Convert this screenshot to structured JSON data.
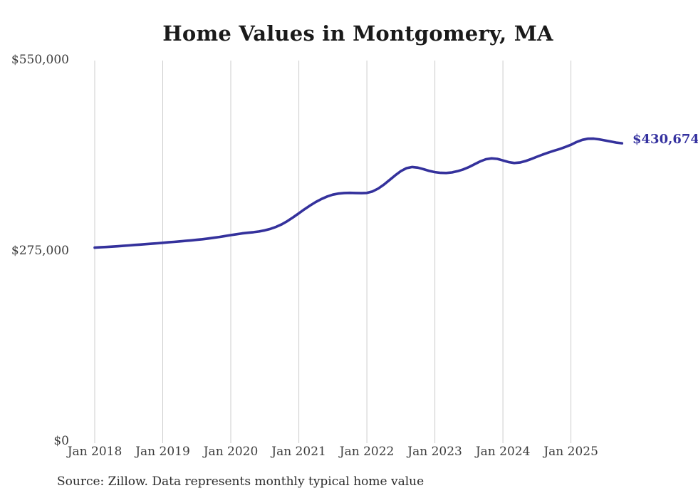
{
  "title": "Home Values in Montgomery, MA",
  "source_note": "Source: Zillow. Data represents monthly typical home value",
  "colors": {
    "line": "#34319c",
    "grid": "#cccccc",
    "title_text": "#1a1a1a",
    "axis_text": "#3d3d3d",
    "end_label_text": "#34319f",
    "background": "#ffffff"
  },
  "y_axis": {
    "tick_labels": [
      "$550,000",
      "$275,000",
      "$0"
    ],
    "tick_values": [
      550000,
      275000,
      0
    ]
  },
  "chart_data": {
    "type": "line",
    "title": "Home Values in Montgomery, MA",
    "xlabel": "",
    "ylabel": "",
    "ylim": [
      0,
      550000
    ],
    "y_tick_values": [
      0,
      275000,
      550000
    ],
    "grid": "vertical-only",
    "legend": "none",
    "series_name": "Typical home value",
    "end_label": "$430,674",
    "latest_value": 430674,
    "x_tick_labels": [
      "Jan 2018",
      "Jan 2019",
      "Jan 2020",
      "Jan 2021",
      "Jan 2022",
      "Jan 2023",
      "Jan 2024",
      "Jan 2025"
    ],
    "x_tick_month_indices": [
      0,
      12,
      24,
      36,
      48,
      60,
      72,
      84
    ],
    "x_months": [
      "2018-01",
      "2018-02",
      "2018-03",
      "2018-04",
      "2018-05",
      "2018-06",
      "2018-07",
      "2018-08",
      "2018-09",
      "2018-10",
      "2018-11",
      "2018-12",
      "2019-01",
      "2019-02",
      "2019-03",
      "2019-04",
      "2019-05",
      "2019-06",
      "2019-07",
      "2019-08",
      "2019-09",
      "2019-10",
      "2019-11",
      "2019-12",
      "2020-01",
      "2020-02",
      "2020-03",
      "2020-04",
      "2020-05",
      "2020-06",
      "2020-07",
      "2020-08",
      "2020-09",
      "2020-10",
      "2020-11",
      "2020-12",
      "2021-01",
      "2021-02",
      "2021-03",
      "2021-04",
      "2021-05",
      "2021-06",
      "2021-07",
      "2021-08",
      "2021-09",
      "2021-10",
      "2021-11",
      "2021-12",
      "2022-01",
      "2022-02",
      "2022-03",
      "2022-04",
      "2022-05",
      "2022-06",
      "2022-07",
      "2022-08",
      "2022-09",
      "2022-10",
      "2022-11",
      "2022-12",
      "2023-01",
      "2023-02",
      "2023-03",
      "2023-04",
      "2023-05",
      "2023-06",
      "2023-07",
      "2023-08",
      "2023-09",
      "2023-10",
      "2023-11",
      "2023-12",
      "2024-01",
      "2024-02",
      "2024-03",
      "2024-04",
      "2024-05",
      "2024-06",
      "2024-07",
      "2024-08",
      "2024-09",
      "2024-10",
      "2024-11",
      "2024-12",
      "2025-01",
      "2025-02",
      "2025-03",
      "2025-04",
      "2025-05",
      "2025-06",
      "2025-07",
      "2025-08",
      "2025-09",
      "2025-10"
    ],
    "values": [
      280000,
      280500,
      281000,
      281500,
      282000,
      282600,
      283200,
      283900,
      284500,
      285100,
      285700,
      286300,
      287000,
      287700,
      288400,
      289100,
      289800,
      290500,
      291300,
      292200,
      293200,
      294300,
      295500,
      296800,
      298100,
      299400,
      300600,
      301500,
      302300,
      303400,
      305000,
      307200,
      310100,
      313800,
      318400,
      323800,
      329600,
      335400,
      340900,
      345900,
      350300,
      353900,
      356500,
      358100,
      358900,
      359100,
      358900,
      358700,
      359000,
      361200,
      365300,
      371000,
      377600,
      384400,
      390500,
      394800,
      396400,
      395500,
      393200,
      390800,
      389000,
      388000,
      387800,
      388600,
      390300,
      392900,
      396300,
      400400,
      404500,
      407600,
      408800,
      408100,
      405900,
      403500,
      402200,
      402900,
      405000,
      407900,
      411200,
      414300,
      417200,
      419800,
      422300,
      425300,
      428500,
      432500,
      435600,
      437200,
      437300,
      436300,
      434800,
      433200,
      431700,
      430674
    ]
  }
}
